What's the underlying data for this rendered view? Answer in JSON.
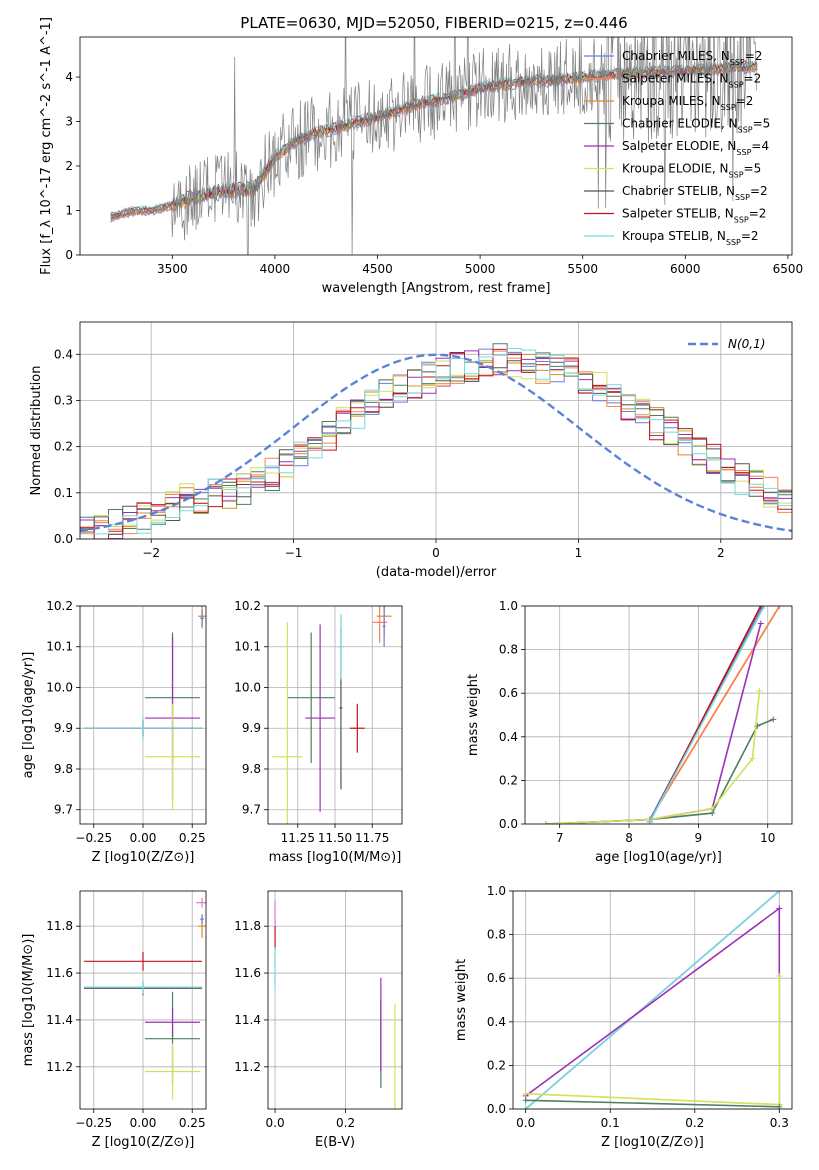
{
  "figure_title": "PLATE=0630, MJD=52050, FIBERID=0215, z=0.446",
  "legend": [
    {
      "name": "Chabrier MILES, N",
      "sub": "SSP",
      "tail": "=2",
      "color": "#6b7fd7"
    },
    {
      "name": "Salpeter MILES, N",
      "sub": "SSP",
      "tail": "=2",
      "color": "#ff7f50"
    },
    {
      "name": "Kroupa MILES, N",
      "sub": "SSP",
      "tail": "=2",
      "color": "#d98c2c"
    },
    {
      "name": "Chabrier ELODIE, N",
      "sub": "SSP",
      "tail": "=5",
      "color": "#4f7f5f"
    },
    {
      "name": "Salpeter ELODIE, N",
      "sub": "SSP",
      "tail": "=4",
      "color": "#9b30b8"
    },
    {
      "name": "Kroupa ELODIE, N",
      "sub": "SSP",
      "tail": "=5",
      "color": "#d4e157"
    },
    {
      "name": "Chabrier STELIB, N",
      "sub": "SSP",
      "tail": "=2",
      "color": "#555555"
    },
    {
      "name": "Salpeter STELIB, N",
      "sub": "SSP",
      "tail": "=2",
      "color": "#c0141e"
    },
    {
      "name": "Kroupa STELIB, N",
      "sub": "SSP",
      "tail": "=2",
      "color": "#7ad7e0"
    }
  ],
  "chart_data": [
    {
      "id": "spectrum",
      "type": "line",
      "xlabel": "wavelength [Angstrom, rest frame]",
      "ylabel": "Flux [f_λ 10^-17 erg cm^-2 s^-1 A^-1]",
      "xlim": [
        3050,
        6520
      ],
      "ylim": [
        0,
        4.9
      ],
      "xticks": [
        "3500",
        "4000",
        "4500",
        "5000",
        "5500",
        "6000",
        "6500"
      ],
      "yticks": [
        "0",
        "1",
        "2",
        "3",
        "4"
      ],
      "grid": false,
      "legend_position": "right",
      "continuum": {
        "x": [
          3200,
          3300,
          3400,
          3500,
          3600,
          3700,
          3800,
          3900,
          4000,
          4100,
          4200,
          4300,
          4400,
          4500,
          4600,
          4700,
          4800,
          4900,
          5000,
          5200,
          5400,
          5600,
          5800,
          6000,
          6200,
          6350
        ],
        "y": [
          0.85,
          0.98,
          1.0,
          1.12,
          1.3,
          1.4,
          1.45,
          1.5,
          2.2,
          2.55,
          2.75,
          2.85,
          3.0,
          3.1,
          3.25,
          3.4,
          3.5,
          3.6,
          3.75,
          3.9,
          3.95,
          4.05,
          4.1,
          4.15,
          4.2,
          4.25
        ]
      }
    },
    {
      "id": "residuals",
      "type": "bar",
      "xlabel": "(data-model)/error",
      "ylabel": "Normed distribution",
      "xlim": [
        -2.5,
        2.5
      ],
      "ylim": [
        0,
        0.47
      ],
      "xticks": [
        "−2",
        "−1",
        "0",
        "1",
        "2"
      ],
      "yticks": [
        "0.0",
        "0.1",
        "0.2",
        "0.3",
        "0.4"
      ],
      "grid": true,
      "reference_curve": {
        "name": "N(0,1)",
        "color": "#5b84d6",
        "style": "dashed"
      },
      "bin_width": 0.1,
      "series_values": [
        0.02,
        0.025,
        0.03,
        0.04,
        0.045,
        0.06,
        0.075,
        0.085,
        0.09,
        0.095,
        0.1,
        0.11,
        0.125,
        0.14,
        0.16,
        0.18,
        0.2,
        0.225,
        0.25,
        0.27,
        0.29,
        0.31,
        0.325,
        0.34,
        0.35,
        0.36,
        0.37,
        0.375,
        0.38,
        0.39,
        0.38,
        0.375,
        0.37,
        0.365,
        0.36,
        0.35,
        0.33,
        0.31,
        0.29,
        0.27,
        0.25,
        0.23,
        0.21,
        0.19,
        0.17,
        0.15,
        0.13,
        0.115,
        0.1,
        0.085
      ]
    },
    {
      "id": "age-vs-Z",
      "type": "scatter",
      "xlabel": "Z [log10(Z/Z⊙)]",
      "ylabel": "age [log10(age/yr)]",
      "xlim": [
        -0.32,
        0.32
      ],
      "ylim": [
        9.665,
        10.2
      ],
      "xticks": [
        "−0.25",
        "0.00",
        "0.25"
      ],
      "yticks": [
        "9.7",
        "9.8",
        "9.9",
        "10.0",
        "10.1",
        "10.2"
      ],
      "grid": true,
      "points": [
        {
          "x": 0.3,
          "y": 10.175,
          "xerr": 0.02,
          "yerr": 0.03,
          "color": "#d98c2c"
        },
        {
          "x": 0.3,
          "y": 10.175,
          "xerr": 0.01,
          "yerr": 0.02,
          "color": "#ff7f50"
        },
        {
          "x": 0.3,
          "y": 10.17,
          "xerr": 0.01,
          "yerr": 0.02,
          "color": "#6b7fd7"
        },
        {
          "x": 0.15,
          "y": 9.975,
          "xerr": 0.14,
          "yerr": 0.16,
          "color": "#4f7f5f"
        },
        {
          "x": 0.15,
          "y": 9.925,
          "xerr": 0.14,
          "yerr": 0.2,
          "color": "#9b30b8"
        },
        {
          "x": 0.15,
          "y": 9.83,
          "xerr": 0.14,
          "yerr": 0.13,
          "color": "#d4e157"
        },
        {
          "x": 0.0,
          "y": 9.9,
          "xerr": 0.3,
          "yerr": 0.02,
          "color": "#555555"
        },
        {
          "x": 0.0,
          "y": 9.9,
          "xerr": 0.3,
          "yerr": 0.02,
          "color": "#c0141e"
        },
        {
          "x": 0.0,
          "y": 9.9,
          "xerr": 0.3,
          "yerr": 0.03,
          "color": "#7ad7e0"
        }
      ]
    },
    {
      "id": "age-vs-mass",
      "type": "scatter",
      "xlabel": "mass [log10(M/M⊙)]",
      "ylabel": "",
      "xlim": [
        11.05,
        11.95
      ],
      "ylim": [
        9.665,
        10.2
      ],
      "xticks": [
        "11.25",
        "11.50",
        "11.75"
      ],
      "yticks": [
        "9.7",
        "9.8",
        "9.9",
        "10.0",
        "10.1",
        "10.2"
      ],
      "grid": true,
      "points": [
        {
          "x": 11.83,
          "y": 10.175,
          "xerr": 0.05,
          "yerr": 0.05,
          "color": "#d98c2c"
        },
        {
          "x": 11.8,
          "y": 10.16,
          "xerr": 0.05,
          "yerr": 0.05,
          "color": "#ff7f50"
        },
        {
          "x": 11.83,
          "y": 10.15,
          "xerr": 0.01,
          "yerr": 0.05,
          "color": "#6b7fd7"
        },
        {
          "x": 11.34,
          "y": 9.975,
          "xerr": 0.16,
          "yerr": 0.16,
          "color": "#4f7f5f"
        },
        {
          "x": 11.4,
          "y": 9.925,
          "xerr": 0.1,
          "yerr": 0.23,
          "color": "#9b30b8"
        },
        {
          "x": 11.18,
          "y": 9.83,
          "xerr": 0.1,
          "yerr": 0.33,
          "color": "#d4e157"
        },
        {
          "x": 11.54,
          "y": 9.95,
          "xerr": 0.01,
          "yerr": 0.2,
          "color": "#555555"
        },
        {
          "x": 11.65,
          "y": 9.9,
          "xerr": 0.05,
          "yerr": 0.06,
          "color": "#c0141e"
        },
        {
          "x": 11.54,
          "y": 10.1,
          "xerr": 0.02,
          "yerr": 0.08,
          "color": "#7ad7e0"
        }
      ]
    },
    {
      "id": "cumulative-mass-vs-age",
      "type": "line",
      "xlabel": "age [log10(age/yr)]",
      "ylabel": "mass weight",
      "xlim": [
        6.5,
        10.35
      ],
      "ylim": [
        0,
        1
      ],
      "xticks": [
        "7",
        "8",
        "9",
        "10"
      ],
      "yticks": [
        "0.0",
        "0.2",
        "0.4",
        "0.6",
        "0.8",
        "1.0"
      ],
      "grid": true,
      "series": [
        {
          "color": "#d98c2c",
          "x": [
            8.3,
            10.17
          ],
          "y": [
            0.02,
            1.0
          ]
        },
        {
          "color": "#ff7f50",
          "x": [
            8.3,
            10.17
          ],
          "y": [
            0.02,
            1.0
          ]
        },
        {
          "color": "#6b7fd7",
          "x": [
            8.3,
            9.93
          ],
          "y": [
            0.02,
            1.0
          ]
        },
        {
          "color": "#4f7f5f",
          "x": [
            6.8,
            8.3,
            9.2,
            9.85,
            10.08
          ],
          "y": [
            0.0,
            0.02,
            0.05,
            0.45,
            0.48
          ]
        },
        {
          "color": "#9b30b8",
          "x": [
            6.8,
            8.3,
            9.2,
            9.9
          ],
          "y": [
            0.0,
            0.02,
            0.07,
            0.92
          ]
        },
        {
          "color": "#d4e157",
          "x": [
            6.8,
            8.3,
            9.2,
            9.78,
            9.88
          ],
          "y": [
            0.0,
            0.02,
            0.07,
            0.3,
            0.61
          ]
        },
        {
          "color": "#555555",
          "x": [
            8.3,
            9.9
          ],
          "y": [
            0.01,
            1.0
          ]
        },
        {
          "color": "#c0141e",
          "x": [
            8.3,
            9.9
          ],
          "y": [
            0.01,
            1.0
          ]
        },
        {
          "color": "#7ad7e0",
          "x": [
            8.3,
            9.95
          ],
          "y": [
            0.01,
            1.0
          ]
        }
      ]
    },
    {
      "id": "mass-vs-Z",
      "type": "scatter",
      "xlabel": "Z [log10(Z/Z⊙)]",
      "ylabel": "mass [log10(M/M⊙)]",
      "xlim": [
        -0.32,
        0.32
      ],
      "ylim": [
        11.02,
        11.95
      ],
      "xticks": [
        "−0.25",
        "0.00",
        "0.25"
      ],
      "yticks": [
        "11.2",
        "11.4",
        "11.6",
        "11.8"
      ],
      "grid": true,
      "points": [
        {
          "x": 0.3,
          "y": 11.9,
          "xerr": 0.03,
          "yerr": 0.02,
          "color": "#e377c2"
        },
        {
          "x": 0.3,
          "y": 11.8,
          "xerr": 0.02,
          "yerr": 0.05,
          "color": "#d98c2c"
        },
        {
          "x": 0.3,
          "y": 11.83,
          "xerr": 0.01,
          "yerr": 0.02,
          "color": "#6b7fd7"
        },
        {
          "x": 0.15,
          "y": 11.32,
          "xerr": 0.14,
          "yerr": 0.2,
          "color": "#4f7f5f"
        },
        {
          "x": 0.15,
          "y": 11.39,
          "xerr": 0.14,
          "yerr": 0.06,
          "color": "#9b30b8"
        },
        {
          "x": 0.15,
          "y": 11.18,
          "xerr": 0.14,
          "yerr": 0.12,
          "color": "#d4e157"
        },
        {
          "x": 0.0,
          "y": 11.535,
          "xerr": 0.3,
          "yerr": 0.03,
          "color": "#555555"
        },
        {
          "x": 0.0,
          "y": 11.65,
          "xerr": 0.3,
          "yerr": 0.04,
          "color": "#c0141e"
        },
        {
          "x": 0.0,
          "y": 11.54,
          "xerr": 0.3,
          "yerr": 0.03,
          "color": "#7ad7e0"
        }
      ]
    },
    {
      "id": "mass-vs-EBV",
      "type": "scatter",
      "xlabel": "E(B-V)",
      "ylabel": "",
      "xlim": [
        -0.02,
        0.36
      ],
      "ylim": [
        11.02,
        11.95
      ],
      "xticks": [
        "0.0",
        "0.2"
      ],
      "yticks": [
        "11.2",
        "11.4",
        "11.6",
        "11.8"
      ],
      "grid": true,
      "points": [
        {
          "x": 0.0,
          "y": 11.85,
          "xerr": 0,
          "yerr": 0.06,
          "color": "#e377c2"
        },
        {
          "x": 0.0,
          "y": 11.75,
          "xerr": 0,
          "yerr": 0.05,
          "color": "#c0141e"
        },
        {
          "x": 0.0,
          "y": 11.62,
          "xerr": 0,
          "yerr": 0.09,
          "color": "#7ad7e0"
        },
        {
          "x": 0.3,
          "y": 11.3,
          "xerr": 0,
          "yerr": 0.19,
          "color": "#4f7f5f"
        },
        {
          "x": 0.3,
          "y": 11.38,
          "xerr": 0,
          "yerr": 0.2,
          "color": "#9b30b8"
        },
        {
          "x": 0.34,
          "y": 11.18,
          "xerr": 0,
          "yerr": 0.29,
          "color": "#d4e157"
        }
      ]
    },
    {
      "id": "cumulative-mass-vs-Z",
      "type": "line",
      "xlabel": "Z [log10(Z/Z⊙)]",
      "ylabel": "mass weight",
      "xlim": [
        -0.015,
        0.315
      ],
      "ylim": [
        0,
        1
      ],
      "xticks": [
        "0.0",
        "0.1",
        "0.2",
        "0.3"
      ],
      "yticks": [
        "0.0",
        "0.2",
        "0.4",
        "0.6",
        "0.8",
        "1.0"
      ],
      "grid": true,
      "series": [
        {
          "color": "#6b7fd7",
          "x": [
            0.0,
            0.3
          ],
          "y": [
            0.0,
            1.0
          ]
        },
        {
          "color": "#7ad7e0",
          "x": [
            0.0,
            0.3
          ],
          "y": [
            0.0,
            1.0
          ]
        },
        {
          "color": "#9b30b8",
          "x": [
            0.0,
            0.3,
            0.3
          ],
          "y": [
            0.06,
            0.92,
            0.02
          ]
        },
        {
          "color": "#d4e157",
          "x": [
            0.0,
            0.3,
            0.3
          ],
          "y": [
            0.07,
            0.02,
            0.61
          ]
        },
        {
          "color": "#4f7f5f",
          "x": [
            0.0,
            0.3
          ],
          "y": [
            0.04,
            0.01
          ]
        }
      ]
    }
  ]
}
